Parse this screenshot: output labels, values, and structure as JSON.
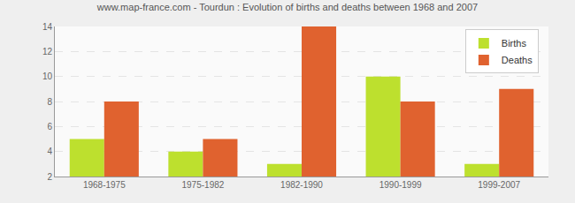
{
  "chart_data": {
    "type": "bar",
    "title": "www.map-france.com - Tourdun : Evolution of births and deaths between 1968 and 2007",
    "categories": [
      "1968-1975",
      "1975-1982",
      "1982-1990",
      "1990-1999",
      "1999-2007"
    ],
    "series": [
      {
        "name": "Births",
        "color": "#bde02e",
        "values": [
          5,
          4,
          3,
          10,
          3
        ]
      },
      {
        "name": "Deaths",
        "color": "#e0622f",
        "values": [
          8,
          5,
          14,
          8,
          9
        ]
      }
    ],
    "ylim": [
      2,
      14
    ],
    "yticks": [
      2,
      4,
      6,
      8,
      10,
      12,
      14
    ],
    "grid": true,
    "legend": "top-right"
  }
}
